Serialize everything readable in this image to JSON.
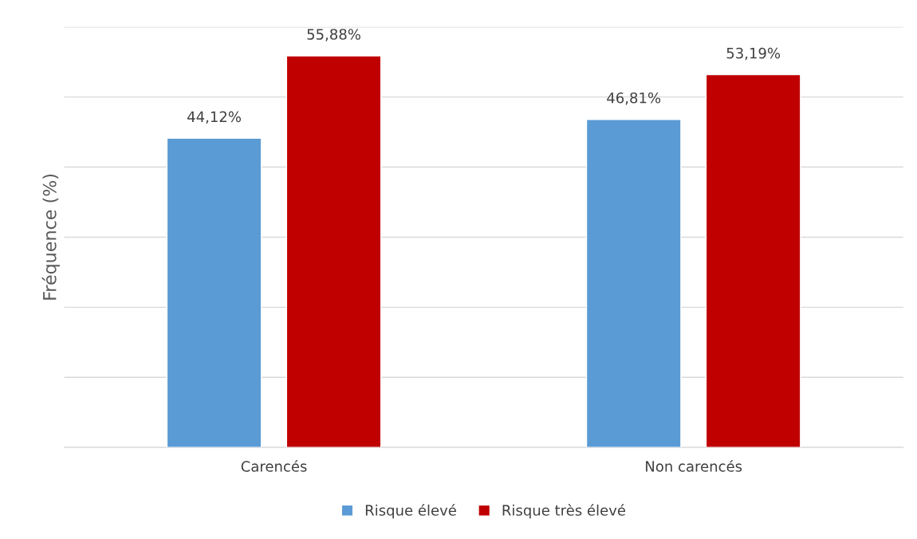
{
  "chart_data": {
    "type": "bar",
    "ylabel": "Fréquence (%)",
    "categories": [
      "Carencés",
      "Non carencés"
    ],
    "series": [
      {
        "name": "Risque élevé",
        "color": "#5b9bd5",
        "values": [
          44.12,
          46.81
        ],
        "value_labels": [
          "44,12%",
          "46,81%"
        ]
      },
      {
        "name": "Risque très élevé",
        "color": "#c00000",
        "values": [
          55.88,
          53.19
        ],
        "value_labels": [
          "55,88%",
          "53,19%"
        ]
      }
    ],
    "ylim": [
      0,
      60
    ],
    "yticks": [
      {
        "value": 0,
        "label": null
      },
      {
        "value": 10,
        "label": null
      },
      {
        "value": 20,
        "label": null
      },
      {
        "value": 30,
        "label": null
      },
      {
        "value": 40,
        "label": null
      },
      {
        "value": 50,
        "label": null
      },
      {
        "value": 60,
        "label": null
      }
    ],
    "tick_labels": "x",
    "grid": "y",
    "legend": "bottom"
  }
}
